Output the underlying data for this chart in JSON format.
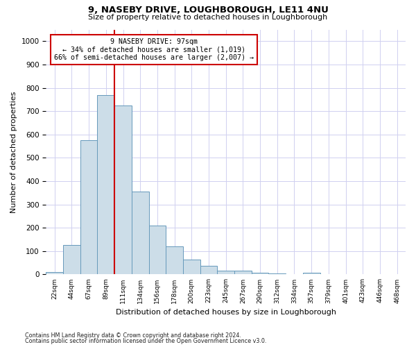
{
  "title": "9, NASEBY DRIVE, LOUGHBOROUGH, LE11 4NU",
  "subtitle": "Size of property relative to detached houses in Loughborough",
  "xlabel": "Distribution of detached houses by size in Loughborough",
  "ylabel": "Number of detached properties",
  "bar_values": [
    10,
    125,
    575,
    770,
    725,
    355,
    210,
    120,
    65,
    38,
    15,
    15,
    8,
    5,
    0,
    8,
    0,
    0,
    0,
    0,
    0
  ],
  "bin_labels": [
    "22sqm",
    "44sqm",
    "67sqm",
    "89sqm",
    "111sqm",
    "134sqm",
    "156sqm",
    "178sqm",
    "200sqm",
    "223sqm",
    "245sqm",
    "267sqm",
    "290sqm",
    "312sqm",
    "334sqm",
    "357sqm",
    "379sqm",
    "401sqm",
    "423sqm",
    "446sqm",
    "468sqm"
  ],
  "bar_color": "#ccdde8",
  "bar_edge_color": "#6699bb",
  "grid_color": "#d0d0f0",
  "vline_bin_index": 3,
  "vline_color": "#cc0000",
  "annotation_text": "9 NASEBY DRIVE: 97sqm\n← 34% of detached houses are smaller (1,019)\n66% of semi-detached houses are larger (2,007) →",
  "annotation_box_color": "#ffffff",
  "annotation_box_edge": "#cc0000",
  "ylim": [
    0,
    1050
  ],
  "yticks": [
    0,
    100,
    200,
    300,
    400,
    500,
    600,
    700,
    800,
    900,
    1000
  ],
  "footnote1": "Contains HM Land Registry data © Crown copyright and database right 2024.",
  "footnote2": "Contains public sector information licensed under the Open Government Licence v3.0.",
  "fig_width": 6.0,
  "fig_height": 5.0,
  "dpi": 100
}
